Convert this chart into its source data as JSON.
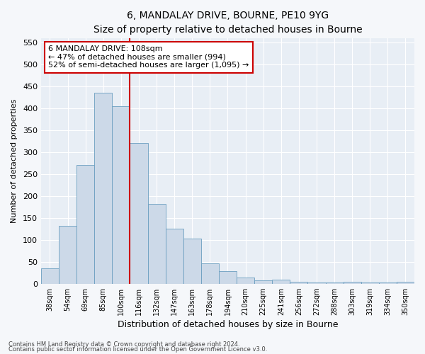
{
  "title1": "6, MANDALAY DRIVE, BOURNE, PE10 9YG",
  "title2": "Size of property relative to detached houses in Bourne",
  "xlabel": "Distribution of detached houses by size in Bourne",
  "ylabel": "Number of detached properties",
  "categories": [
    "38sqm",
    "54sqm",
    "69sqm",
    "85sqm",
    "100sqm",
    "116sqm",
    "132sqm",
    "147sqm",
    "163sqm",
    "178sqm",
    "194sqm",
    "210sqm",
    "225sqm",
    "241sqm",
    "256sqm",
    "272sqm",
    "288sqm",
    "303sqm",
    "319sqm",
    "334sqm",
    "350sqm"
  ],
  "bar_heights": [
    35,
    132,
    270,
    435,
    405,
    320,
    182,
    125,
    103,
    47,
    28,
    14,
    8,
    10,
    5,
    3,
    3,
    4,
    3,
    3,
    5
  ],
  "bar_color": "#ccd9e8",
  "bar_edge_color": "#6a9ec0",
  "vline_x_index": 4,
  "vline_color": "#cc0000",
  "annotation_text": "6 MANDALAY DRIVE: 108sqm\n← 47% of detached houses are smaller (994)\n52% of semi-detached houses are larger (1,095) →",
  "annotation_box_facecolor": "#ffffff",
  "annotation_box_edgecolor": "#cc0000",
  "ylim": [
    0,
    560
  ],
  "yticks": [
    0,
    50,
    100,
    150,
    200,
    250,
    300,
    350,
    400,
    450,
    500,
    550
  ],
  "fig_facecolor": "#f5f7fa",
  "plot_facecolor": "#e8eef5",
  "grid_color": "#ffffff",
  "footer1": "Contains HM Land Registry data © Crown copyright and database right 2024.",
  "footer2": "Contains public sector information licensed under the Open Government Licence v3.0.",
  "title1_fontsize": 10,
  "title2_fontsize": 9,
  "xlabel_fontsize": 9,
  "ylabel_fontsize": 8,
  "xtick_fontsize": 7,
  "ytick_fontsize": 8,
  "annotation_fontsize": 8,
  "footer_fontsize": 6
}
